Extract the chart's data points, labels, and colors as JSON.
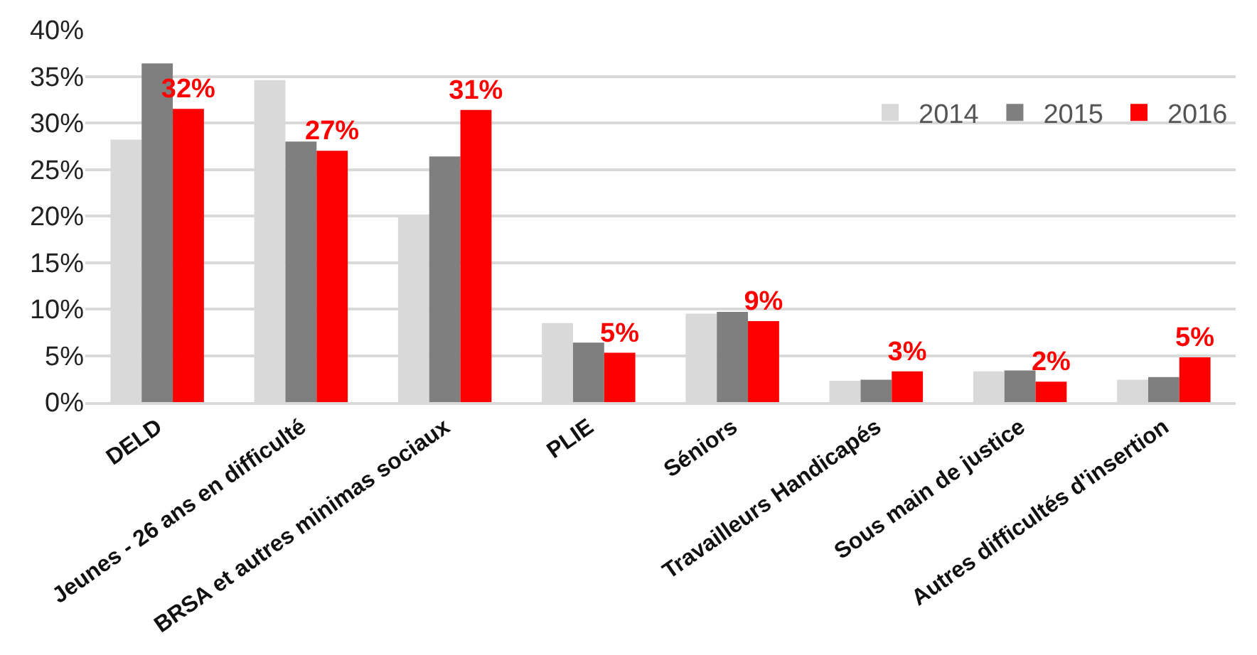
{
  "chart_data": {
    "type": "bar",
    "categories": [
      "DELD",
      "Jeunes - 26 ans en difficulté",
      "BRSA et autres minimas sociaux",
      "PLIE",
      "Séniors",
      "Travailleurs Handicapés",
      "Sous main de justice",
      "Autres difficultés d'insertion"
    ],
    "series": [
      {
        "name": "2014",
        "color": "#d9d9d9",
        "values": [
          28.2,
          34.6,
          20.1,
          8.5,
          9.5,
          2.3,
          3.3,
          2.4
        ]
      },
      {
        "name": "2015",
        "color": "#7f7f7f",
        "values": [
          36.4,
          28.0,
          26.4,
          6.4,
          9.7,
          2.4,
          3.4,
          2.7
        ]
      },
      {
        "name": "2016",
        "color": "#ff0000",
        "values": [
          31.5,
          27.0,
          31.4,
          5.3,
          8.7,
          3.3,
          2.2,
          4.8
        ],
        "value_labels": [
          "32%",
          "27%",
          "31%",
          "5%",
          "9%",
          "3%",
          "2%",
          "5%"
        ]
      }
    ],
    "ylim": [
      0,
      40
    ],
    "yticks": [
      {
        "value": 0,
        "label": "0%"
      },
      {
        "value": 5,
        "label": "5%"
      },
      {
        "value": 10,
        "label": "10%"
      },
      {
        "value": 15,
        "label": "15%"
      },
      {
        "value": 20,
        "label": "20%"
      },
      {
        "value": 25,
        "label": "25%"
      },
      {
        "value": 30,
        "label": "30%"
      },
      {
        "value": 35,
        "label": "35%"
      },
      {
        "value": 40,
        "label": "40%"
      }
    ],
    "grid": "y",
    "legend": "top right"
  }
}
